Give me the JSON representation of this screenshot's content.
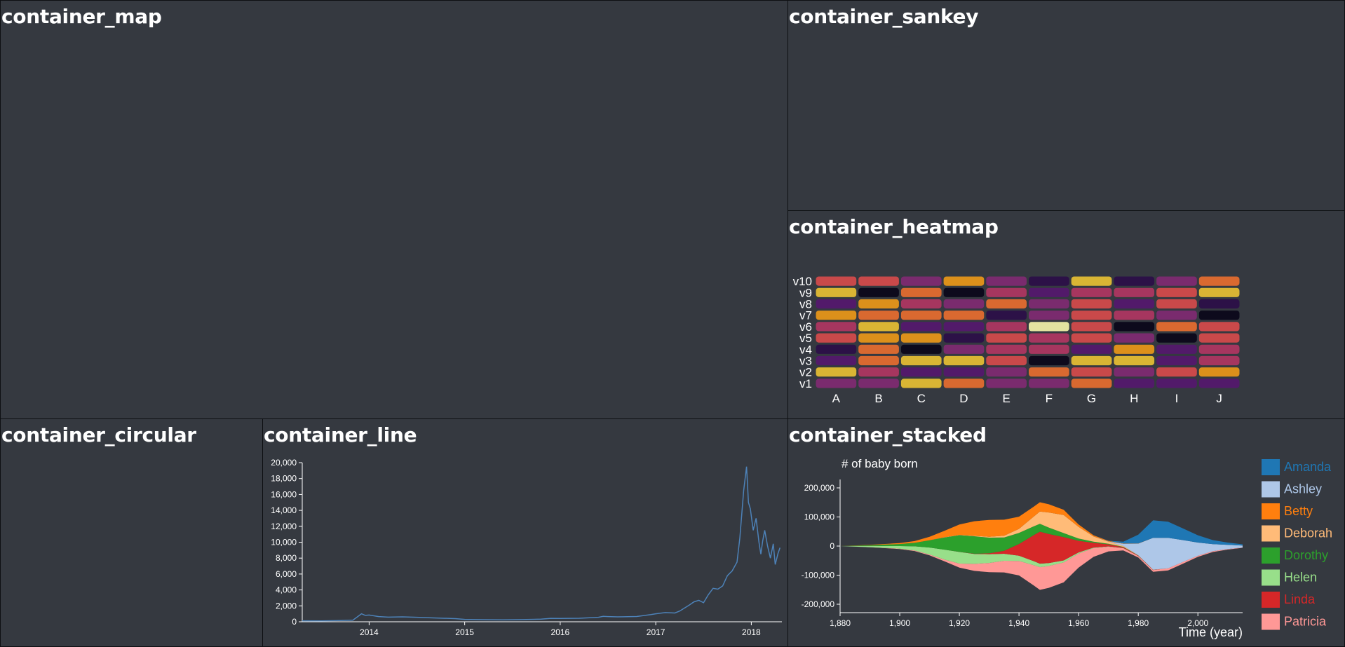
{
  "panels": {
    "map": "container_map",
    "sankey": "container_sankey",
    "heatmap": "container_heatmap",
    "circular": "container_circular",
    "line": "container_line",
    "stacked": "container_stacked"
  },
  "chart_data": [
    {
      "id": "heatmap",
      "type": "heatmap",
      "x": [
        "A",
        "B",
        "C",
        "D",
        "E",
        "F",
        "G",
        "H",
        "I",
        "J"
      ],
      "y": [
        "v1",
        "v2",
        "v3",
        "v4",
        "v5",
        "v6",
        "v7",
        "v8",
        "v9",
        "v10"
      ],
      "colormap": [
        "#0d0a1c",
        "#2c1147",
        "#521a6a",
        "#7a2b6e",
        "#a6365f",
        "#c9494a",
        "#d96930",
        "#dc901b",
        "#d9b534",
        "#e3e3a0"
      ],
      "value_range": [
        0,
        100
      ],
      "values": [
        [
          35,
          35,
          90,
          65,
          35,
          35,
          65,
          25,
          25,
          25
        ],
        [
          92,
          45,
          25,
          25,
          35,
          70,
          55,
          35,
          50,
          75
        ],
        [
          25,
          70,
          92,
          88,
          50,
          5,
          85,
          85,
          25,
          45
        ],
        [
          15,
          70,
          5,
          35,
          45,
          45,
          25,
          75,
          25,
          40
        ],
        [
          50,
          75,
          75,
          15,
          60,
          45,
          60,
          35,
          5,
          60
        ],
        [
          45,
          85,
          25,
          25,
          45,
          96,
          60,
          5,
          65,
          55
        ],
        [
          78,
          70,
          65,
          70,
          15,
          35,
          55,
          45,
          35,
          5
        ],
        [
          25,
          75,
          45,
          35,
          70,
          35,
          55,
          25,
          60,
          15
        ],
        [
          92,
          5,
          65,
          0,
          45,
          25,
          45,
          45,
          50,
          92
        ],
        [
          60,
          60,
          35,
          80,
          35,
          15,
          85,
          10,
          35,
          65
        ]
      ]
    },
    {
      "id": "line",
      "type": "line",
      "x_ticks": [
        "2014",
        "2015",
        "2016",
        "2017",
        "2018"
      ],
      "y_ticks": [
        "0",
        "2,000",
        "4,000",
        "6,000",
        "8,000",
        "10,000",
        "12,000",
        "14,000",
        "16,000",
        "18,000",
        "20,000"
      ],
      "xlim": [
        2013.3,
        2018.32
      ],
      "ylim": [
        0,
        20000
      ],
      "color": "#4d82b8",
      "x": [
        2013.3,
        2013.5,
        2013.7,
        2013.83,
        2013.92,
        2013.96,
        2014.0,
        2014.1,
        2014.2,
        2014.35,
        2014.5,
        2014.7,
        2014.9,
        2015.0,
        2015.2,
        2015.4,
        2015.6,
        2015.8,
        2015.9,
        2016.0,
        2016.2,
        2016.4,
        2016.45,
        2016.5,
        2016.6,
        2016.8,
        2016.95,
        2017.0,
        2017.1,
        2017.2,
        2017.25,
        2017.35,
        2017.4,
        2017.45,
        2017.5,
        2017.55,
        2017.6,
        2017.65,
        2017.7,
        2017.75,
        2017.8,
        2017.85,
        2017.88,
        2017.92,
        2017.95,
        2017.97,
        2017.99,
        2018.02,
        2018.05,
        2018.08,
        2018.1,
        2018.12,
        2018.14,
        2018.17,
        2018.2,
        2018.23,
        2018.25,
        2018.28,
        2018.3
      ],
      "y": [
        120,
        110,
        150,
        200,
        1000,
        800,
        850,
        650,
        580,
        620,
        560,
        480,
        400,
        300,
        260,
        240,
        270,
        330,
        430,
        420,
        440,
        560,
        680,
        650,
        620,
        660,
        900,
        1000,
        1150,
        1100,
        1350,
        2100,
        2500,
        2700,
        2400,
        3400,
        4200,
        4100,
        4500,
        5800,
        6400,
        7500,
        10500,
        16500,
        19500,
        15000,
        14200,
        11500,
        13000,
        10000,
        8500,
        10200,
        11500,
        9500,
        8000,
        9800,
        7200,
        8600,
        9300
      ]
    },
    {
      "id": "stacked",
      "type": "area",
      "title": "# of baby born",
      "xlabel": "Time (year)",
      "x_ticks": [
        "1,880",
        "1,900",
        "1,920",
        "1,940",
        "1,960",
        "1,980",
        "2,000"
      ],
      "y_ticks": [
        "-200,000",
        "-100,000",
        "0",
        "100,000",
        "200,000"
      ],
      "xlim": [
        1880,
        2015
      ],
      "ylim": [
        -200000,
        200000
      ],
      "offset": "silhouette",
      "x": [
        1880,
        1890,
        1900,
        1905,
        1910,
        1915,
        1920,
        1925,
        1930,
        1935,
        1940,
        1945,
        1947,
        1950,
        1955,
        1960,
        1965,
        1970,
        1975,
        1980,
        1985,
        1990,
        1995,
        2000,
        2005,
        2010,
        2015
      ],
      "series": [
        {
          "name": "Amanda",
          "color": "#1f77b4",
          "values": [
            0,
            0,
            0,
            0,
            0,
            0,
            0,
            0,
            0,
            0,
            0,
            0,
            0,
            0,
            0,
            0,
            0,
            500,
            6000,
            30000,
            60000,
            55000,
            40000,
            25000,
            14000,
            8000,
            4000
          ]
        },
        {
          "name": "Ashley",
          "color": "#aec7e8",
          "values": [
            0,
            0,
            0,
            0,
            0,
            0,
            0,
            0,
            0,
            0,
            0,
            0,
            0,
            0,
            0,
            0,
            0,
            1000,
            8000,
            40000,
            110000,
            105000,
            75000,
            45000,
            24000,
            14000,
            7000
          ]
        },
        {
          "name": "Betty",
          "color": "#ff7f0e",
          "values": [
            0,
            1000,
            3000,
            6000,
            12000,
            22000,
            36000,
            50000,
            58000,
            55000,
            42000,
            34000,
            32000,
            28000,
            18000,
            8000,
            4000,
            2000,
            1000,
            500,
            0,
            0,
            0,
            0,
            0,
            0,
            0
          ]
        },
        {
          "name": "Deborah",
          "color": "#ffbb78",
          "values": [
            0,
            0,
            0,
            0,
            0,
            500,
            1000,
            1500,
            3000,
            6000,
            14000,
            34000,
            42000,
            52000,
            62000,
            40000,
            18000,
            7000,
            3000,
            1000,
            500,
            0,
            0,
            0,
            0,
            0,
            0
          ]
        },
        {
          "name": "Dorothy",
          "color": "#2ca02c",
          "values": [
            0,
            3000,
            7000,
            12000,
            25000,
            42000,
            57000,
            60000,
            54000,
            46000,
            38000,
            30000,
            27000,
            22000,
            14000,
            8000,
            4000,
            2000,
            1000,
            500,
            0,
            0,
            0,
            0,
            0,
            0,
            0
          ]
        },
        {
          "name": "Helen",
          "color": "#98df8a",
          "values": [
            0,
            4000,
            9000,
            14000,
            24000,
            34000,
            40000,
            34000,
            30000,
            24000,
            18000,
            14000,
            12000,
            10000,
            7000,
            4000,
            2000,
            1000,
            500,
            0,
            0,
            0,
            0,
            0,
            0,
            0,
            0
          ]
        },
        {
          "name": "Linda",
          "color": "#d62728",
          "values": [
            0,
            0,
            0,
            0,
            0,
            0,
            500,
            1000,
            3000,
            10000,
            40000,
            90000,
            110000,
            100000,
            80000,
            40000,
            16000,
            7000,
            3000,
            1000,
            500,
            0,
            0,
            0,
            0,
            0,
            0
          ]
        },
        {
          "name": "Patricia",
          "color": "#ff9896",
          "values": [
            0,
            500,
            1000,
            2000,
            3000,
            6000,
            14000,
            24000,
            32000,
            40000,
            50000,
            70000,
            78000,
            75000,
            68000,
            48000,
            30000,
            16000,
            8000,
            5000,
            6000,
            7000,
            6000,
            4000,
            3000,
            2000,
            1000
          ]
        }
      ]
    }
  ]
}
